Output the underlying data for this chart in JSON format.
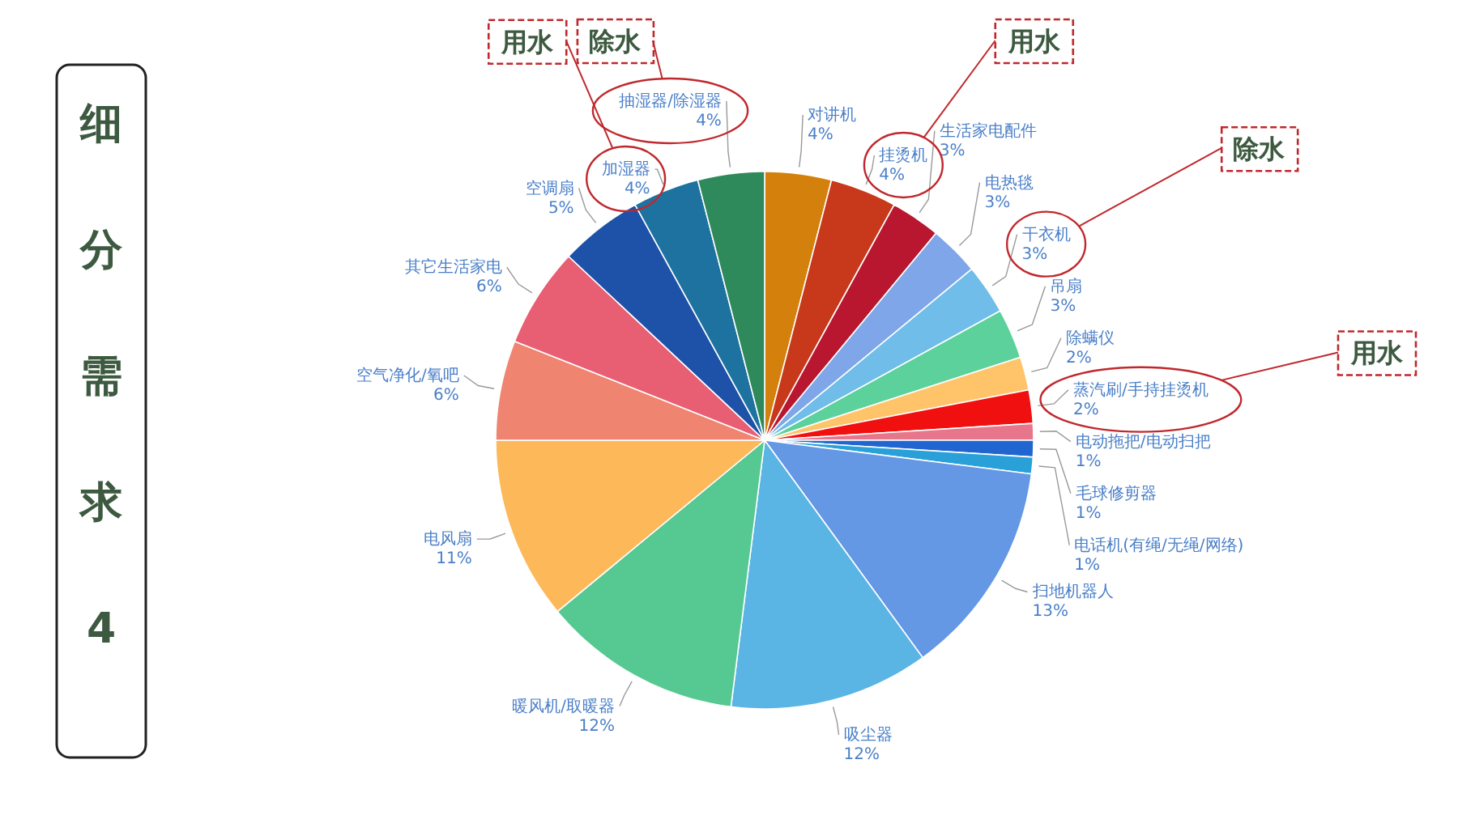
{
  "chart_data": {
    "type": "pie",
    "title": "细分需求4",
    "categories": [
      "对讲机",
      "挂烫机",
      "生活家电配件",
      "电热毯",
      "干衣机",
      "吊扇",
      "除螨仪",
      "蒸汽刷/手持挂烫机",
      "电动拖把/电动扫把",
      "毛球修剪器",
      "电话机(有绳/无绳/网络)",
      "扫地机器人",
      "吸尘器",
      "暖风机/取暖器",
      "电风扇",
      "空气净化/氧吧",
      "其它生活家电",
      "空调扇",
      "加湿器",
      "抽湿器/除湿器"
    ],
    "values": [
      4,
      4,
      3,
      3,
      3,
      3,
      2,
      2,
      1,
      1,
      1,
      13,
      12,
      12,
      11,
      6,
      6,
      5,
      4,
      4
    ],
    "value_labels": [
      "4%",
      "4%",
      "3%",
      "3%",
      "3%",
      "3%",
      "2%",
      "2%",
      "1%",
      "1%",
      "1%",
      "13%",
      "12%",
      "12%",
      "11%",
      "6%",
      "6%",
      "5%",
      "4%",
      "4%"
    ],
    "colors": [
      "#d4800c",
      "#c8381a",
      "#b8172f",
      "#7ea6e8",
      "#6fbde8",
      "#5dd19c",
      "#ffc46a",
      "#f01010",
      "#e8768a",
      "#2166d0",
      "#2aa0d8",
      "#6497e4",
      "#5ab4e4",
      "#56c891",
      "#fdb85a",
      "#ef8470",
      "#e85e72",
      "#1e52a8",
      "#1e72a0",
      "#2e8a5a"
    ],
    "annotations": [
      {
        "text": "用水",
        "x": "加湿器"
      },
      {
        "text": "除水",
        "x": "抽湿器/除湿器"
      },
      {
        "text": "用水",
        "x": "挂烫机"
      },
      {
        "text": "除水",
        "x": "干衣机"
      },
      {
        "text": "用水",
        "x": "蒸汽刷/手持挂烫机"
      }
    ]
  }
}
